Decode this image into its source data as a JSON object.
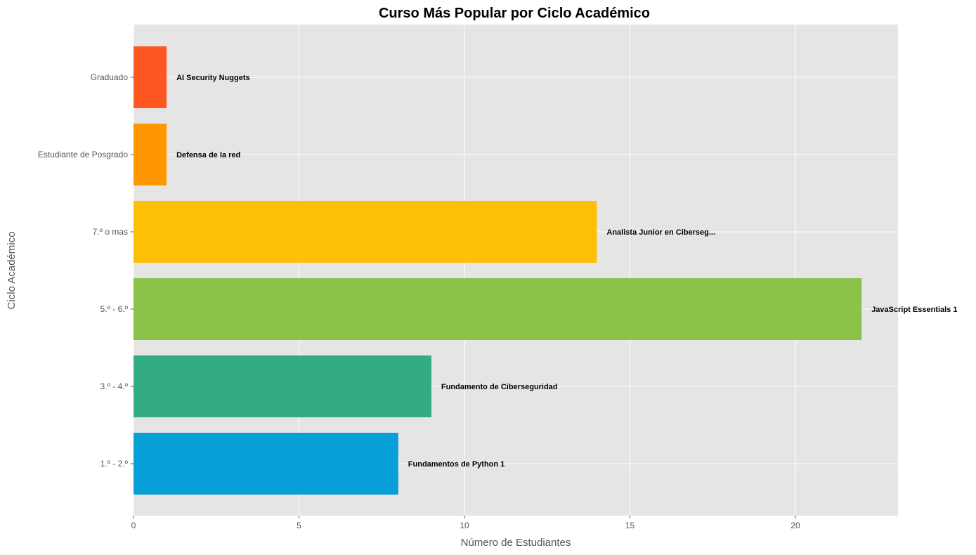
{
  "chart_data": {
    "type": "bar",
    "orientation": "horizontal",
    "title": "Curso Más Popular por Ciclo Académico",
    "xlabel": "Número de Estudiantes",
    "ylabel": "Ciclo Académico",
    "xlim": [
      0,
      23.1
    ],
    "xticks": [
      0,
      5,
      10,
      15,
      20
    ],
    "grid": true,
    "background": "#e5e5e5",
    "categories": [
      "1.º - 2.º",
      "3.º - 4.º",
      "5.º - 6.º",
      "7.º o mas",
      "Estudiante de Posgrado",
      "Graduado"
    ],
    "values": [
      8,
      9,
      22,
      14,
      1,
      1
    ],
    "labels": [
      "Fundamentos de Python 1",
      "Fundamento de Ciberseguridad",
      "JavaScript Essentials 1",
      "Analista Junior en Ciberseg...",
      "Defensa de la red",
      "AI Security Nuggets"
    ],
    "colors": [
      "#079fd8",
      "#33ab84",
      "#8bc34a",
      "#fdc007",
      "#ff9800",
      "#ff5722"
    ]
  }
}
